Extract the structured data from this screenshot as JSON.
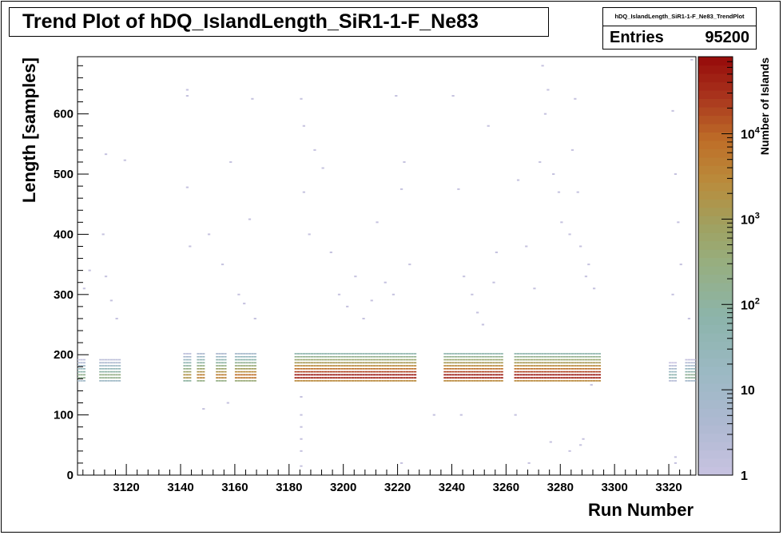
{
  "chart_data": {
    "type": "heatmap",
    "title": "Trend Plot of hDQ_IslandLength_SiR1-1-F_Ne83",
    "xlabel": "Run Number",
    "ylabel": "Length [samples]",
    "zlabel": "Number of Islands",
    "xlim": [
      3102,
      3330
    ],
    "ylim": [
      0,
      695
    ],
    "zscale": "log",
    "zlim": [
      1,
      80000
    ],
    "x_ticks": [
      3120,
      3140,
      3160,
      3180,
      3200,
      3220,
      3240,
      3260,
      3280,
      3300,
      3320
    ],
    "y_ticks": [
      0,
      100,
      200,
      300,
      400,
      500,
      600
    ],
    "z_ticks": [
      {
        "value": 1,
        "label": "1"
      },
      {
        "value": 10,
        "label": "10"
      },
      {
        "value": 100,
        "label": "10^2"
      },
      {
        "value": 1000,
        "label": "10^3"
      },
      {
        "value": 10000,
        "label": "10^4"
      }
    ],
    "run_groups": [
      {
        "runs": [
          3102,
          3103,
          3104
        ],
        "peak_counts": 200
      },
      {
        "runs": [
          3110,
          3111,
          3112,
          3113,
          3114,
          3115,
          3116,
          3117
        ],
        "peak_counts": 250
      },
      {
        "runs": [
          3141,
          3142,
          3143
        ],
        "peak_counts": 2000
      },
      {
        "runs": [
          3146,
          3147,
          3148
        ],
        "peak_counts": 5000
      },
      {
        "runs": [
          3153,
          3154,
          3155,
          3156
        ],
        "peak_counts": 5000
      },
      {
        "runs": [
          3160,
          3161,
          3162,
          3163,
          3164,
          3165,
          3166,
          3167
        ],
        "peak_counts": 8000
      },
      {
        "runs": [
          3182,
          3183,
          3184,
          3185,
          3186,
          3187,
          3188,
          3189,
          3190,
          3191,
          3192,
          3193,
          3194,
          3195,
          3196,
          3197,
          3198,
          3199,
          3200,
          3201,
          3202,
          3203,
          3204,
          3205,
          3206,
          3207,
          3208,
          3209,
          3210,
          3211,
          3212,
          3213,
          3214,
          3215,
          3216,
          3217,
          3218,
          3219,
          3220,
          3221,
          3222,
          3223,
          3224,
          3225,
          3226
        ],
        "peak_counts": 60000
      },
      {
        "runs": [
          3237,
          3238,
          3239,
          3240,
          3241,
          3242,
          3243,
          3244,
          3245,
          3246,
          3247,
          3248,
          3249,
          3250,
          3251,
          3252,
          3253,
          3254,
          3255,
          3256,
          3257,
          3258
        ],
        "peak_counts": 60000
      },
      {
        "runs": [
          3263,
          3264,
          3265,
          3266,
          3267,
          3268,
          3269,
          3270,
          3271,
          3272,
          3273,
          3274,
          3275,
          3276,
          3277,
          3278,
          3279,
          3280,
          3281,
          3282,
          3283,
          3284,
          3285,
          3286,
          3287,
          3288,
          3289,
          3290,
          3291,
          3292,
          3293,
          3294
        ],
        "peak_counts": 60000
      },
      {
        "runs": [
          3320,
          3321,
          3322
        ],
        "peak_counts": 50
      },
      {
        "runs": [
          3326,
          3327,
          3328,
          3329
        ],
        "peak_counts": 150
      }
    ],
    "band_profile": [
      {
        "length": 155,
        "fraction": 0.05
      },
      {
        "length": 160,
        "fraction": 0.8
      },
      {
        "length": 165,
        "fraction": 1.0
      },
      {
        "length": 170,
        "fraction": 0.35
      },
      {
        "length": 175,
        "fraction": 0.12
      },
      {
        "length": 180,
        "fraction": 0.05
      },
      {
        "length": 185,
        "fraction": 0.02
      },
      {
        "length": 190,
        "fraction": 0.008
      },
      {
        "length": 195,
        "fraction": 0.003
      },
      {
        "length": 200,
        "fraction": 0.001
      }
    ],
    "tail_points": [
      [
        3111,
        400
      ],
      [
        3112,
        330
      ],
      [
        3114,
        290
      ],
      [
        3116,
        260
      ],
      [
        3104,
        310
      ],
      [
        3106,
        340
      ],
      [
        3112,
        533
      ],
      [
        3119,
        523
      ],
      [
        3142,
        640
      ],
      [
        3142,
        630
      ],
      [
        3142,
        478
      ],
      [
        3143,
        380
      ],
      [
        3148,
        110
      ],
      [
        3150,
        400
      ],
      [
        3155,
        350
      ],
      [
        3157,
        120
      ],
      [
        3158,
        520
      ],
      [
        3161,
        300
      ],
      [
        3163,
        285
      ],
      [
        3165,
        425
      ],
      [
        3166,
        625
      ],
      [
        3167,
        260
      ],
      [
        3184,
        625
      ],
      [
        3185,
        580
      ],
      [
        3185,
        470
      ],
      [
        3187,
        400
      ],
      [
        3189,
        540
      ],
      [
        3192,
        510
      ],
      [
        3195,
        370
      ],
      [
        3198,
        300
      ],
      [
        3201,
        280
      ],
      [
        3204,
        330
      ],
      [
        3207,
        260
      ],
      [
        3210,
        290
      ],
      [
        3212,
        420
      ],
      [
        3215,
        320
      ],
      [
        3218,
        300
      ],
      [
        3219,
        630
      ],
      [
        3221,
        475
      ],
      [
        3222,
        520
      ],
      [
        3224,
        350
      ],
      [
        3221,
        20
      ],
      [
        3184,
        130
      ],
      [
        3184,
        100
      ],
      [
        3184,
        80
      ],
      [
        3184,
        60
      ],
      [
        3184,
        40
      ],
      [
        3184,
        15
      ],
      [
        3240,
        630
      ],
      [
        3242,
        475
      ],
      [
        3244,
        330
      ],
      [
        3247,
        300
      ],
      [
        3249,
        270
      ],
      [
        3251,
        250
      ],
      [
        3253,
        580
      ],
      [
        3256,
        370
      ],
      [
        3255,
        320
      ],
      [
        3233,
        100
      ],
      [
        3243,
        100
      ],
      [
        3264,
        490
      ],
      [
        3267,
        380
      ],
      [
        3270,
        310
      ],
      [
        3272,
        520
      ],
      [
        3274,
        600
      ],
      [
        3275,
        640
      ],
      [
        3277,
        500
      ],
      [
        3279,
        470
      ],
      [
        3280,
        420
      ],
      [
        3283,
        400
      ],
      [
        3284,
        540
      ],
      [
        3285,
        625
      ],
      [
        3286,
        470
      ],
      [
        3287,
        380
      ],
      [
        3289,
        330
      ],
      [
        3290,
        350
      ],
      [
        3292,
        310
      ],
      [
        3291,
        150
      ],
      [
        3287,
        50
      ],
      [
        3283,
        40
      ],
      [
        3268,
        20
      ],
      [
        3273,
        680
      ],
      [
        3276,
        55
      ],
      [
        3288,
        60
      ],
      [
        3263,
        100
      ],
      [
        3321,
        605
      ],
      [
        3322,
        500
      ],
      [
        3322,
        30
      ],
      [
        3322,
        20
      ],
      [
        3321,
        300
      ],
      [
        3323,
        420
      ],
      [
        3324,
        350
      ],
      [
        3327,
        260
      ],
      [
        3328,
        690
      ]
    ],
    "stats": {
      "name": "hDQ_IslandLength_SiR1-1-F_Ne83_TrendPlot",
      "entries_label": "Entries",
      "entries": "95200"
    }
  }
}
